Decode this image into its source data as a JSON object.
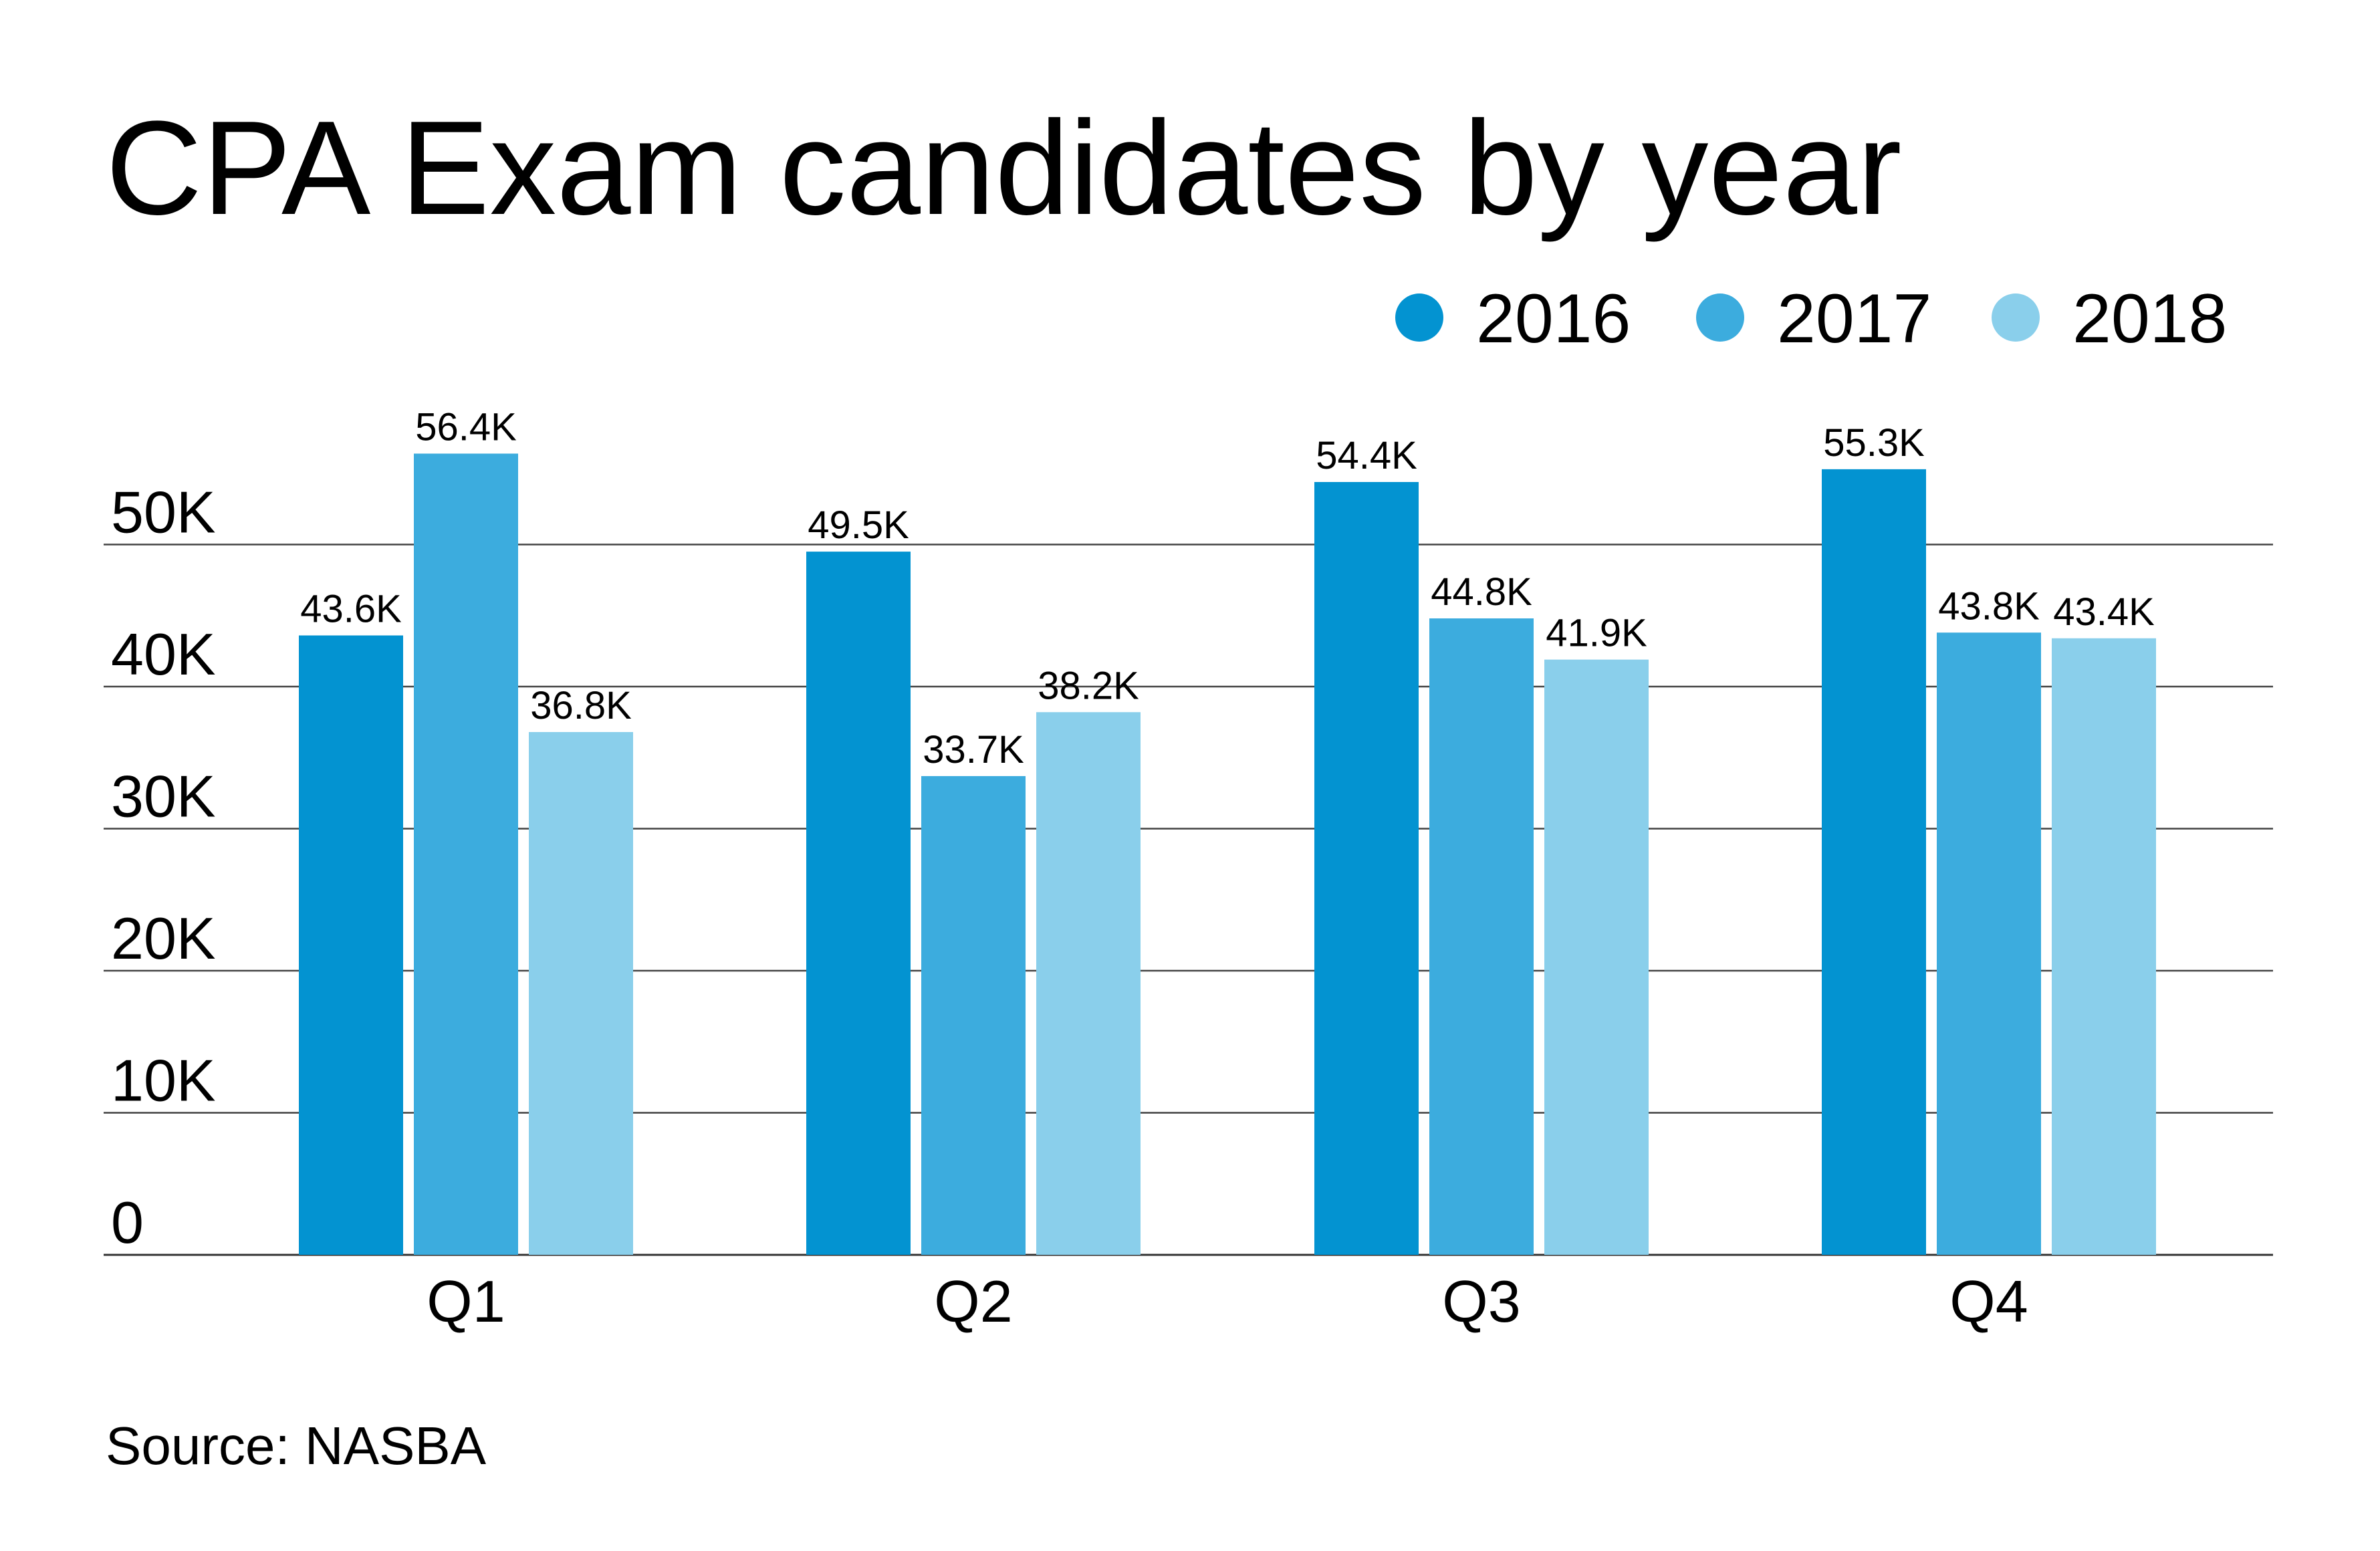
{
  "chart_data": {
    "type": "bar",
    "title": "CPA Exam candidates by year",
    "categories": [
      "Q1",
      "Q2",
      "Q3",
      "Q4"
    ],
    "series": [
      {
        "name": "2016",
        "color": "#0393d1",
        "values": [
          43.6,
          49.5,
          54.4,
          55.3
        ],
        "labels": [
          "43.6K",
          "49.5K",
          "54.4K",
          "55.3K"
        ]
      },
      {
        "name": "2017",
        "color": "#3cacde",
        "values": [
          56.4,
          33.7,
          44.8,
          43.8
        ],
        "labels": [
          "56.4K",
          "33.7K",
          "44.8K",
          "43.8K"
        ]
      },
      {
        "name": "2018",
        "color": "#8acfeb",
        "values": [
          36.8,
          38.2,
          41.9,
          43.4
        ],
        "labels": [
          "36.8K",
          "38.2K",
          "41.9K",
          "43.4K"
        ]
      }
    ],
    "yticks": [
      {
        "value": 0,
        "label": "0"
      },
      {
        "value": 10,
        "label": "10K"
      },
      {
        "value": 20,
        "label": "20K"
      },
      {
        "value": 30,
        "label": "30K"
      },
      {
        "value": 40,
        "label": "40K"
      },
      {
        "value": 50,
        "label": "50K"
      }
    ],
    "ylim": [
      0,
      60
    ],
    "xlabel": "",
    "ylabel": "",
    "grid": true,
    "legend_position": "top-right",
    "source": "Source: NASBA"
  }
}
